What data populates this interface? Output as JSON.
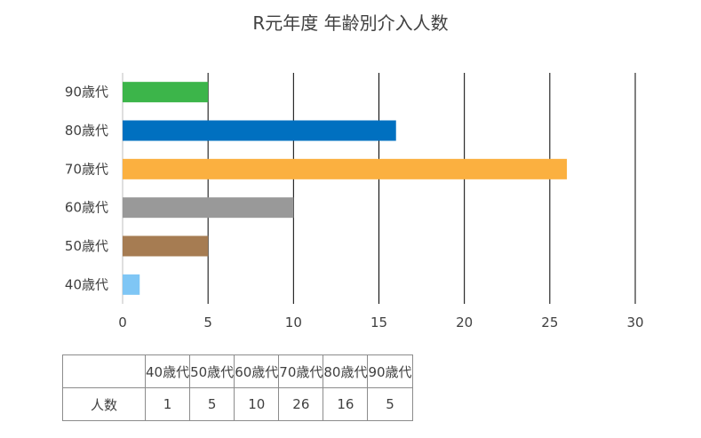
{
  "chart_data": {
    "type": "bar",
    "orientation": "horizontal",
    "title": "R元年度 年齢別介入人数",
    "categories": [
      "40歳代",
      "50歳代",
      "60歳代",
      "70歳代",
      "80歳代",
      "90歳代"
    ],
    "values": [
      1,
      5,
      10,
      26,
      16,
      5
    ],
    "colors": [
      "#7fc6f5",
      "#a67c52",
      "#999999",
      "#fbb040",
      "#0070c0",
      "#3cb54a"
    ],
    "xlim": [
      0,
      30
    ],
    "x_ticks": [
      "0",
      "5",
      "10",
      "15",
      "20",
      "25",
      "30"
    ],
    "grid": true
  },
  "table": {
    "row_label": "人数",
    "headers": [
      "40歳代",
      "50歳代",
      "60歳代",
      "70歳代",
      "80歳代",
      "90歳代"
    ],
    "values": [
      "1",
      "5",
      "10",
      "26",
      "16",
      "5"
    ]
  }
}
